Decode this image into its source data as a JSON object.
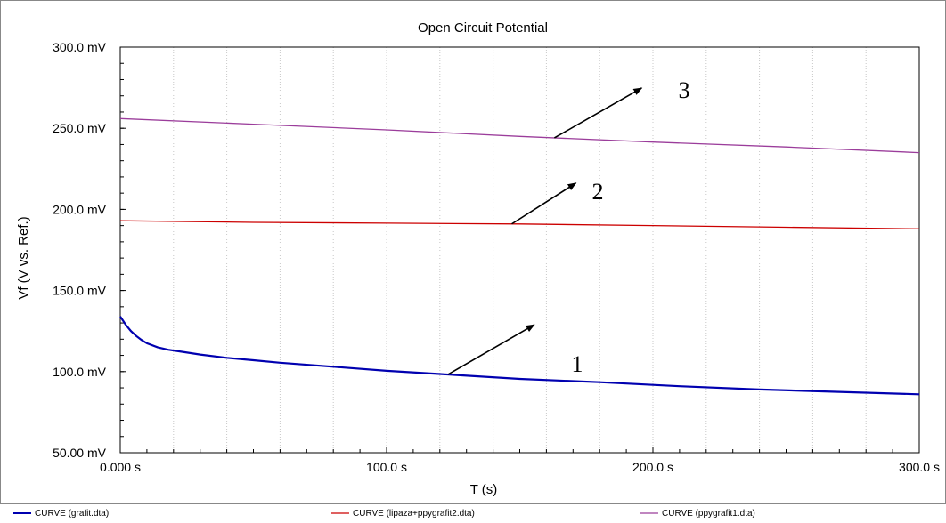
{
  "chart_data": {
    "type": "line",
    "title": "Open Circuit Potential",
    "xlabel": "T (s)",
    "ylabel": "Vf (V vs. Ref.)",
    "xlim": [
      0,
      300
    ],
    "ylim": [
      50,
      300
    ],
    "x_ticks": [
      0,
      100,
      200,
      300
    ],
    "x_tick_labels": [
      "0.000 s",
      "100.0 s",
      "200.0 s",
      "300.0 s"
    ],
    "y_ticks": [
      50,
      100,
      150,
      200,
      250,
      300
    ],
    "y_tick_labels": [
      "50.00 mV",
      "100.0 mV",
      "150.0 mV",
      "200.0 mV",
      "250.0 mV",
      "300.0 mV"
    ],
    "grid": "vertical",
    "legend_position": "bottom",
    "series": [
      {
        "name": "CURVE (grafit.dta)",
        "color": "#0000b0",
        "x": [
          0,
          2,
          4,
          6,
          8,
          10,
          14,
          18,
          24,
          30,
          40,
          50,
          60,
          80,
          100,
          120,
          150,
          180,
          210,
          240,
          270,
          300
        ],
        "y": [
          134,
          129,
          125,
          122,
          119.5,
          117.5,
          115,
          113.5,
          112,
          110.5,
          108.5,
          107,
          105.5,
          103,
          100.5,
          98.5,
          95.5,
          93.5,
          91,
          89,
          87.5,
          86
        ]
      },
      {
        "name": "CURVE (lipaza+ppygrafit2.dta)",
        "color": "#cc0000",
        "x": [
          0,
          50,
          100,
          150,
          200,
          250,
          300
        ],
        "y": [
          193,
          192,
          191.5,
          191,
          190,
          189,
          188
        ]
      },
      {
        "name": "CURVE (ppygrafit1.dta)",
        "color": "#9b3d9b",
        "x": [
          0,
          50,
          100,
          150,
          200,
          250,
          300
        ],
        "y": [
          256,
          252.5,
          249,
          245,
          241.5,
          238.5,
          235
        ]
      }
    ],
    "annotations": [
      {
        "text": "1",
        "series": 0
      },
      {
        "text": "2",
        "series": 1
      },
      {
        "text": "3",
        "series": 2
      }
    ]
  }
}
